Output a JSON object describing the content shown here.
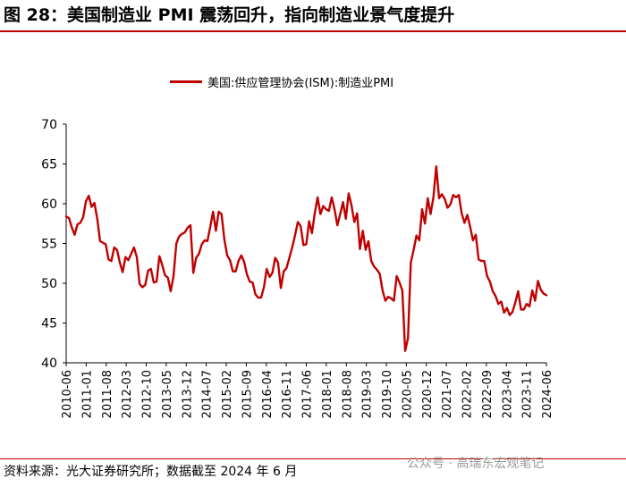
{
  "figure_title": "图 28：美国制造业 PMI 震荡回升，指向制造业景气度提升",
  "source_note": "资料来源：光大证券研究所；数据截至 2024 年 6 月",
  "watermark": "公众号 · 高瑞东宏观笔记",
  "colors": {
    "line": "#c00000",
    "axis": "#000000"
  },
  "chart_data": {
    "type": "line",
    "title": "",
    "xlabel": "",
    "ylabel": "",
    "ylim": [
      40,
      70
    ],
    "yticks": [
      40,
      45,
      50,
      55,
      60,
      65,
      70
    ],
    "grid": false,
    "legend_position": "top-center",
    "x_start": "2010-06",
    "x_end": "2024-06",
    "xtick_labels": [
      "2010-06",
      "2011-01",
      "2011-08",
      "2012-03",
      "2012-10",
      "2013-05",
      "2013-12",
      "2014-07",
      "2015-02",
      "2015-09",
      "2016-04",
      "2016-11",
      "2017-06",
      "2018-01",
      "2018-08",
      "2019-03",
      "2019-10",
      "2020-05",
      "2020-12",
      "2021-07",
      "2022-02",
      "2022-09",
      "2023-04",
      "2023-11",
      "2024-06"
    ],
    "series": [
      {
        "name": "美国:供应管理协会(ISM):制造业PMI",
        "values": [
          58.4,
          58.2,
          57.0,
          56.1,
          57.4,
          57.6,
          58.3,
          60.3,
          61.0,
          59.6,
          60.1,
          58.1,
          55.3,
          55.1,
          54.9,
          53.0,
          52.8,
          54.5,
          54.2,
          52.6,
          51.4,
          53.3,
          52.9,
          53.7,
          54.5,
          53.3,
          49.9,
          49.5,
          49.8,
          51.6,
          51.8,
          50.1,
          50.2,
          53.4,
          52.3,
          51.0,
          50.7,
          49.0,
          50.9,
          55.0,
          55.9,
          56.2,
          56.4,
          57.0,
          57.3,
          51.3,
          53.2,
          53.7,
          54.9,
          55.4,
          55.3,
          57.1,
          59.0,
          56.6,
          59.0,
          58.7,
          55.5,
          53.5,
          52.9,
          51.5,
          51.5,
          52.8,
          53.5,
          52.7,
          51.1,
          50.2,
          50.1,
          48.6,
          48.2,
          48.2,
          49.5,
          51.8,
          50.8,
          51.3,
          53.2,
          52.6,
          49.4,
          51.5,
          51.9,
          53.2,
          54.5,
          56.0,
          57.7,
          57.2,
          54.8,
          54.9,
          57.8,
          56.3,
          58.8,
          60.8,
          58.7,
          59.7,
          59.3,
          59.1,
          60.8,
          59.3,
          57.3,
          58.7,
          60.2,
          58.1,
          61.3,
          59.8,
          57.7,
          58.8,
          54.3,
          56.6,
          54.2,
          55.3,
          52.8,
          52.1,
          51.7,
          51.2,
          49.1,
          47.8,
          48.3,
          48.1,
          47.8,
          50.9,
          50.1,
          49.1,
          41.5,
          43.1,
          52.6,
          54.2,
          56.0,
          55.4,
          59.3,
          57.5,
          60.7,
          58.7,
          60.8,
          64.7,
          60.7,
          61.2,
          60.6,
          59.5,
          59.9,
          61.1,
          60.8,
          61.1,
          58.8,
          57.6,
          58.6,
          57.1,
          55.4,
          56.1,
          53.0,
          52.8,
          52.8,
          50.9,
          50.2,
          49.0,
          48.4,
          47.4,
          47.7,
          46.3,
          46.9,
          46.0,
          46.4,
          47.6,
          49.0,
          46.7,
          46.7,
          47.4,
          47.1,
          49.1,
          47.8,
          50.3,
          49.2,
          48.7,
          48.5
        ]
      }
    ]
  }
}
